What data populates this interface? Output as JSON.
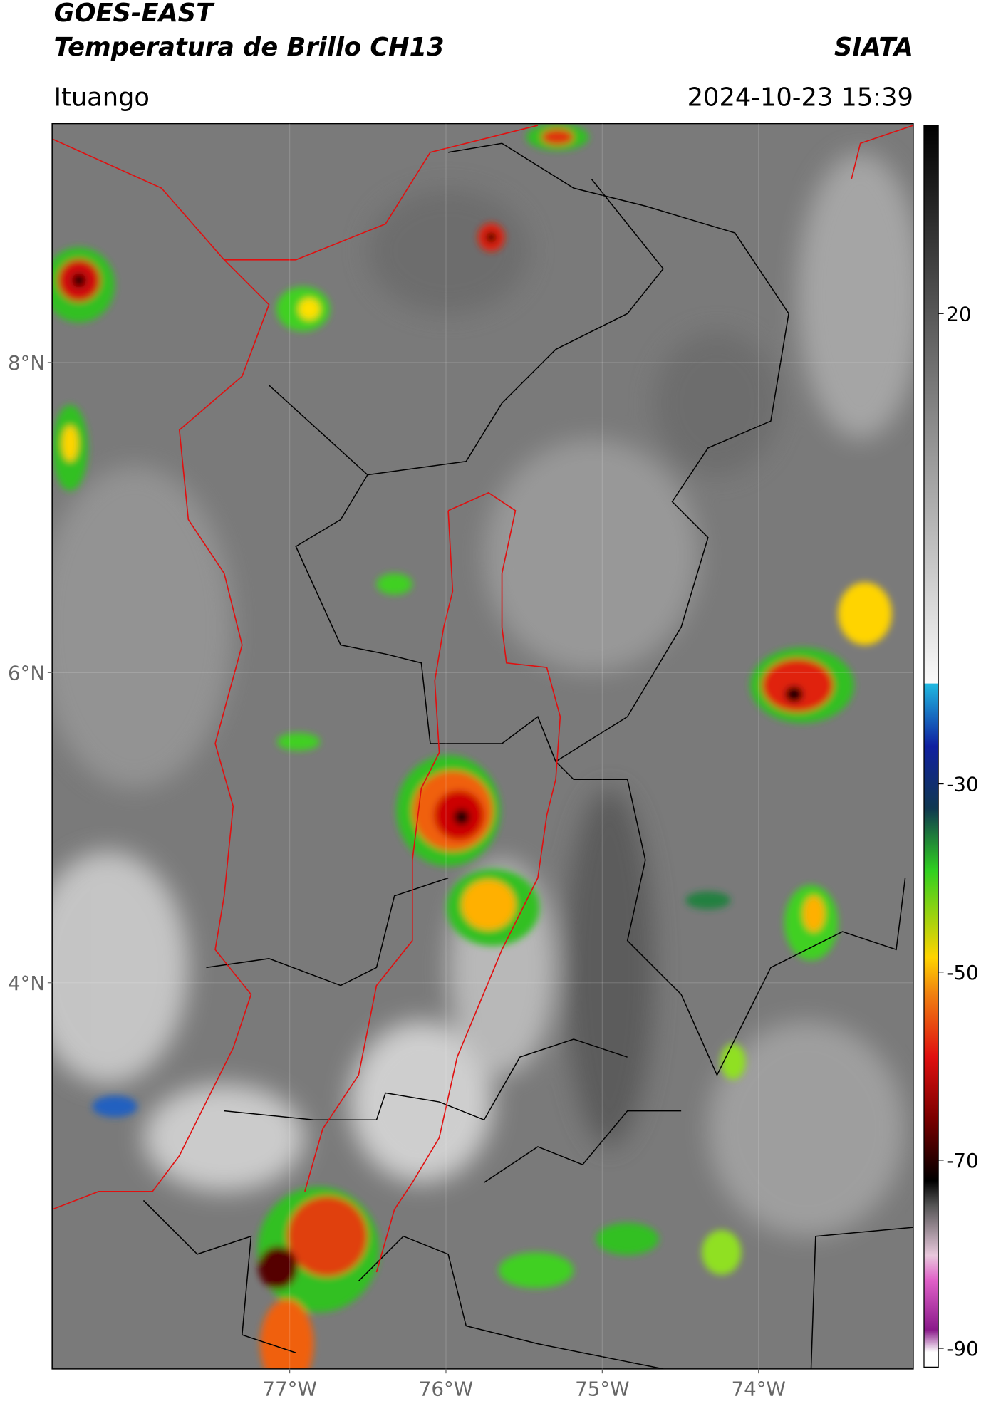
{
  "header": {
    "satellite": "GOES-EAST",
    "product": "Temperatura de Brillo CH13",
    "source": "SIATA",
    "region": "Ituango",
    "datetime": "2024-10-23 15:39"
  },
  "chart_data": {
    "type": "map",
    "xlim": [
      -78.52,
      -73.01
    ],
    "ylim": [
      1.51,
      9.54
    ],
    "xticks": [
      {
        "value": -77,
        "label": "77°W"
      },
      {
        "value": -76,
        "label": "76°W"
      },
      {
        "value": -75,
        "label": "75°W"
      },
      {
        "value": -74,
        "label": "74°W"
      }
    ],
    "yticks": [
      {
        "value": 4,
        "label": "4°N"
      },
      {
        "value": 6,
        "label": "6°N"
      },
      {
        "value": 8,
        "label": "8°N"
      }
    ],
    "grid": true,
    "colorbar": {
      "lim": [
        -92,
        40
      ],
      "ticks": [
        -90,
        -70,
        -50,
        -30,
        20
      ]
    }
  }
}
